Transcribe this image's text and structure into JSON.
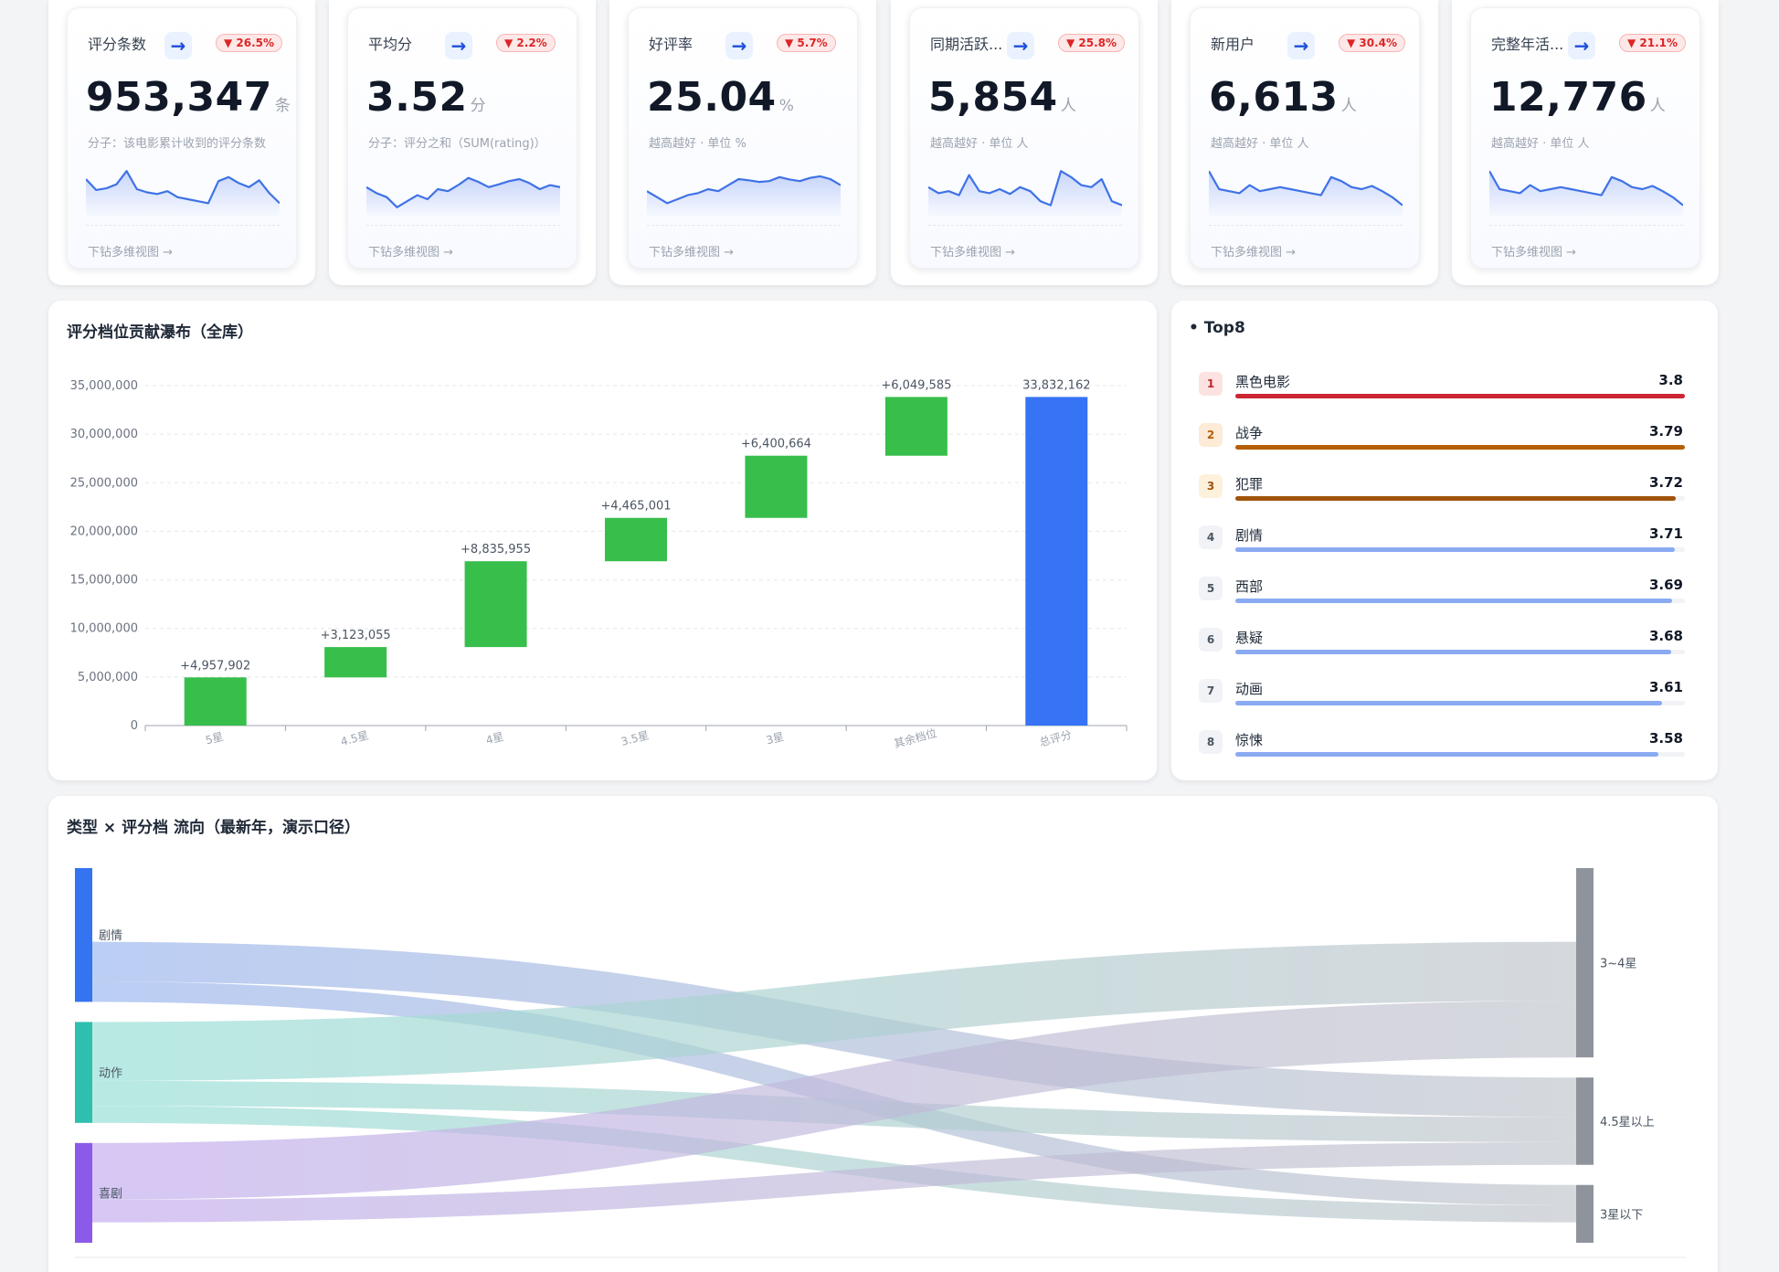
{
  "kpis": [
    {
      "title": "评分条数",
      "badge": "▼ 26.5%",
      "value": "953,347",
      "unit": "条",
      "sub": "分子：该电影累计收到的评分条数",
      "drill": "下钻多维视图 →",
      "spark": [
        0.75,
        0.48,
        0.52,
        0.62,
        0.95,
        0.5,
        0.42,
        0.38,
        0.45,
        0.3,
        0.25,
        0.2,
        0.15,
        0.7,
        0.8,
        0.65,
        0.55,
        0.72,
        0.4,
        0.15
      ]
    },
    {
      "title": "平均分",
      "badge": "▼ 2.2%",
      "value": "3.52",
      "unit": "分",
      "sub": "分子：评分之和（SUM(rating)）",
      "drill": "下钻多维视图 →",
      "spark": [
        0.55,
        0.4,
        0.3,
        0.05,
        0.2,
        0.35,
        0.25,
        0.5,
        0.45,
        0.6,
        0.78,
        0.68,
        0.55,
        0.62,
        0.7,
        0.75,
        0.65,
        0.5,
        0.6,
        0.55
      ]
    },
    {
      "title": "好评率",
      "badge": "▼ 5.7%",
      "value": "25.04",
      "unit": "%",
      "sub": "越高越好 · 单位 %",
      "drill": "下钻多维视图 →",
      "spark": [
        0.45,
        0.3,
        0.15,
        0.25,
        0.35,
        0.4,
        0.5,
        0.45,
        0.6,
        0.75,
        0.72,
        0.68,
        0.7,
        0.8,
        0.74,
        0.7,
        0.78,
        0.82,
        0.75,
        0.6
      ]
    },
    {
      "title": "同期活跃...",
      "badge": "▼ 25.8%",
      "value": "5,854",
      "unit": "人",
      "sub": "越高越好 · 单位 人",
      "drill": "下钻多维视图 →",
      "spark": [
        0.55,
        0.4,
        0.45,
        0.35,
        0.85,
        0.45,
        0.4,
        0.5,
        0.38,
        0.55,
        0.45,
        0.2,
        0.1,
        0.95,
        0.8,
        0.6,
        0.55,
        0.75,
        0.2,
        0.1
      ]
    },
    {
      "title": "新用户",
      "badge": "▼ 30.4%",
      "value": "6,613",
      "unit": "人",
      "sub": "越高越好 · 单位 人",
      "drill": "下钻多维视图 →",
      "spark": [
        0.95,
        0.5,
        0.45,
        0.4,
        0.6,
        0.45,
        0.5,
        0.55,
        0.5,
        0.45,
        0.4,
        0.35,
        0.8,
        0.7,
        0.55,
        0.5,
        0.58,
        0.45,
        0.3,
        0.1
      ]
    },
    {
      "title": "完整年活...",
      "badge": "▼ 21.1%",
      "value": "12,776",
      "unit": "人",
      "sub": "越高越好 · 单位 人",
      "drill": "下钻多维视图 →",
      "spark": [
        0.95,
        0.5,
        0.45,
        0.4,
        0.6,
        0.45,
        0.5,
        0.55,
        0.5,
        0.45,
        0.4,
        0.35,
        0.8,
        0.7,
        0.55,
        0.5,
        0.58,
        0.45,
        0.3,
        0.1
      ]
    }
  ],
  "waterfall": {
    "title": "评分档位贡献瀑布（全库）",
    "chart_data": {
      "type": "bar",
      "categories": [
        "5星",
        "4.5星",
        "4星",
        "3.5星",
        "3星",
        "其余档位",
        "总评分"
      ],
      "increments": [
        4957902,
        3123055,
        8835955,
        4465001,
        6400664,
        6049585
      ],
      "total": 33832162,
      "labels": [
        "+4,957,902",
        "+3,123,055",
        "+8,835,955",
        "+4,465,001",
        "+6,400,664",
        "+6,049,585",
        "33,832,162"
      ],
      "yticks": [
        "0",
        "5,000,000",
        "10,000,000",
        "15,000,000",
        "20,000,000",
        "25,000,000",
        "30,000,000",
        "35,000,000"
      ],
      "ylim": [
        0,
        35000000
      ],
      "colors": {
        "increase": "#37be4b",
        "total": "#3673f5"
      }
    }
  },
  "ranking": {
    "title": "• Top8",
    "items": [
      {
        "rank": "1",
        "name": "黑色电影",
        "value": "3.8",
        "pct": 1.0,
        "color": "#cc2634",
        "badge_bg": "#fde2e2",
        "badge_fg": "#c0262d"
      },
      {
        "rank": "2",
        "name": "战争",
        "value": "3.79",
        "pct": 1.0,
        "color": "#b45f06",
        "badge_bg": "#fdebd7",
        "badge_fg": "#b45f06"
      },
      {
        "rank": "3",
        "name": "犯罪",
        "value": "3.72",
        "pct": 0.98,
        "color": "#a0530a",
        "badge_bg": "#fdf1dc",
        "badge_fg": "#a0530a"
      },
      {
        "rank": "4",
        "name": "剧情",
        "value": "3.71",
        "pct": 0.978,
        "color": "#8aaaf2",
        "badge_bg": "#f1f3f6",
        "badge_fg": "#4b5563"
      },
      {
        "rank": "5",
        "name": "西部",
        "value": "3.69",
        "pct": 0.972,
        "color": "#8aaaf2",
        "badge_bg": "#f1f3f6",
        "badge_fg": "#4b5563"
      },
      {
        "rank": "6",
        "name": "悬疑",
        "value": "3.68",
        "pct": 0.969,
        "color": "#8aaaf2",
        "badge_bg": "#f1f3f6",
        "badge_fg": "#4b5563"
      },
      {
        "rank": "7",
        "name": "动画",
        "value": "3.61",
        "pct": 0.95,
        "color": "#8aaaf2",
        "badge_bg": "#f1f3f6",
        "badge_fg": "#4b5563"
      },
      {
        "rank": "8",
        "name": "惊悚",
        "value": "3.58",
        "pct": 0.942,
        "color": "#8aaaf2",
        "badge_bg": "#f1f3f6",
        "badge_fg": "#4b5563"
      }
    ]
  },
  "sankey": {
    "title": "类型 × 评分档 流向（最新年，演示口径）",
    "sources": [
      {
        "name": "剧情",
        "color": "#3574f0",
        "link": "#a4bdf0"
      },
      {
        "name": "动作",
        "color": "#2fbfae",
        "link": "#a0e3da"
      },
      {
        "name": "喜剧",
        "color": "#8c5ae8",
        "link": "#c8b4f0"
      }
    ],
    "targets": [
      {
        "name": "3~4星",
        "color": "#8f949c"
      },
      {
        "name": "4.5星以上",
        "color": "#8f949c"
      },
      {
        "name": "3星以下",
        "color": "#8f949c"
      }
    ],
    "flows": [
      {
        "source": "剧情",
        "target": "3~4星",
        "value": 65
      },
      {
        "source": "剧情",
        "target": "4.5星以上",
        "value": 35
      },
      {
        "source": "剧情",
        "target": "3星以下",
        "value": 18
      },
      {
        "source": "动作",
        "target": "3~4星",
        "value": 52
      },
      {
        "source": "动作",
        "target": "4.5星以上",
        "value": 22
      },
      {
        "source": "动作",
        "target": "3星以下",
        "value": 15
      },
      {
        "source": "喜剧",
        "target": "3~4星",
        "value": 50
      },
      {
        "source": "喜剧",
        "target": "4.5星以上",
        "value": 20
      },
      {
        "source": "喜剧",
        "target": "3星以下",
        "value": 18
      }
    ]
  }
}
